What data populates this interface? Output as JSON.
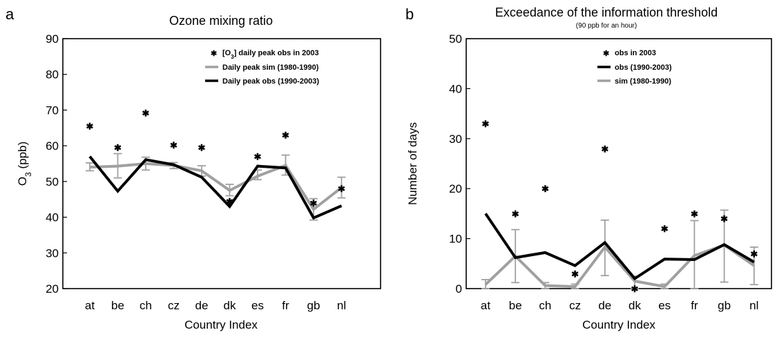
{
  "chart_data": [
    {
      "type": "line",
      "panel_label": "a",
      "title": "Ozone mixing ratio",
      "subtitle": "",
      "xlabel": "Country Index",
      "ylabel": "O",
      "ylabel_sub": "3",
      "ylabel_suffix": " (ppb)",
      "categories": [
        "at",
        "be",
        "ch",
        "cz",
        "de",
        "dk",
        "es",
        "fr",
        "gb",
        "nl"
      ],
      "ylim": [
        20,
        90
      ],
      "yticks": [
        "20",
        "30",
        "40",
        "50",
        "60",
        "70",
        "80",
        "90"
      ],
      "grid": false,
      "legend_position": "top-right",
      "series": [
        {
          "name": "[O3] daily peak obs in 2003",
          "legend_main": "[O",
          "legend_sub": "3",
          "legend_rest": "] daily peak obs in 2003",
          "style": "markers",
          "color": "#000000",
          "values": [
            65.5,
            59.5,
            69.2,
            60.2,
            59.5,
            44.5,
            57.0,
            63.0,
            44.0,
            48.0
          ]
        },
        {
          "name": "Daily peak sim (1980-1990)",
          "style": "line",
          "color": "#a0a0a0",
          "values": [
            54.0,
            54.3,
            55.0,
            54.5,
            53.0,
            47.5,
            51.5,
            54.5,
            42.2,
            48.3
          ],
          "err_low": [
            53.0,
            51.0,
            53.2,
            53.6,
            51.5,
            46.0,
            50.5,
            51.8,
            39.2,
            45.4
          ],
          "err_high": [
            55.2,
            57.8,
            56.8,
            55.3,
            54.4,
            49.2,
            53.2,
            57.4,
            45.2,
            51.2
          ]
        },
        {
          "name": "Daily peak obs (1990-2003)",
          "style": "line",
          "color": "#000000",
          "values": [
            57.0,
            47.3,
            56.1,
            54.7,
            51.2,
            43.0,
            54.3,
            53.8,
            39.8,
            43.2
          ]
        }
      ]
    },
    {
      "type": "line",
      "panel_label": "b",
      "title": "Exceedance of the information threshold",
      "subtitle": "(90 ppb for an hour)",
      "xlabel": "Country Index",
      "ylabel": "Number of days",
      "ylabel_sub": "",
      "ylabel_suffix": "",
      "categories": [
        "at",
        "be",
        "ch",
        "cz",
        "de",
        "dk",
        "es",
        "fr",
        "gb",
        "nl"
      ],
      "ylim": [
        0,
        50
      ],
      "yticks": [
        "0",
        "10",
        "20",
        "30",
        "40",
        "50"
      ],
      "grid": false,
      "legend_position": "top-right",
      "series": [
        {
          "name": "obs in 2003",
          "style": "markers",
          "color": "#000000",
          "values": [
            33,
            15,
            20,
            3,
            28,
            0,
            12,
            15,
            14,
            7
          ]
        },
        {
          "name": "obs (1990-2003)",
          "style": "line",
          "color": "#000000",
          "values": [
            15.0,
            6.2,
            7.2,
            4.6,
            9.2,
            2.0,
            5.9,
            5.8,
            8.8,
            5.3
          ]
        },
        {
          "name": "sim (1980-1990)",
          "style": "line",
          "color": "#a0a0a0",
          "values": [
            0.8,
            6.5,
            0.6,
            0.4,
            8.3,
            1.5,
            0.4,
            6.6,
            8.7,
            4.6
          ],
          "err_low": [
            0.0,
            1.2,
            0.0,
            0.0,
            2.6,
            0.0,
            0.0,
            0.0,
            1.3,
            0.8
          ],
          "err_high": [
            1.8,
            11.8,
            1.2,
            0.9,
            13.7,
            2.5,
            0.9,
            13.6,
            15.7,
            8.3
          ]
        }
      ]
    }
  ]
}
